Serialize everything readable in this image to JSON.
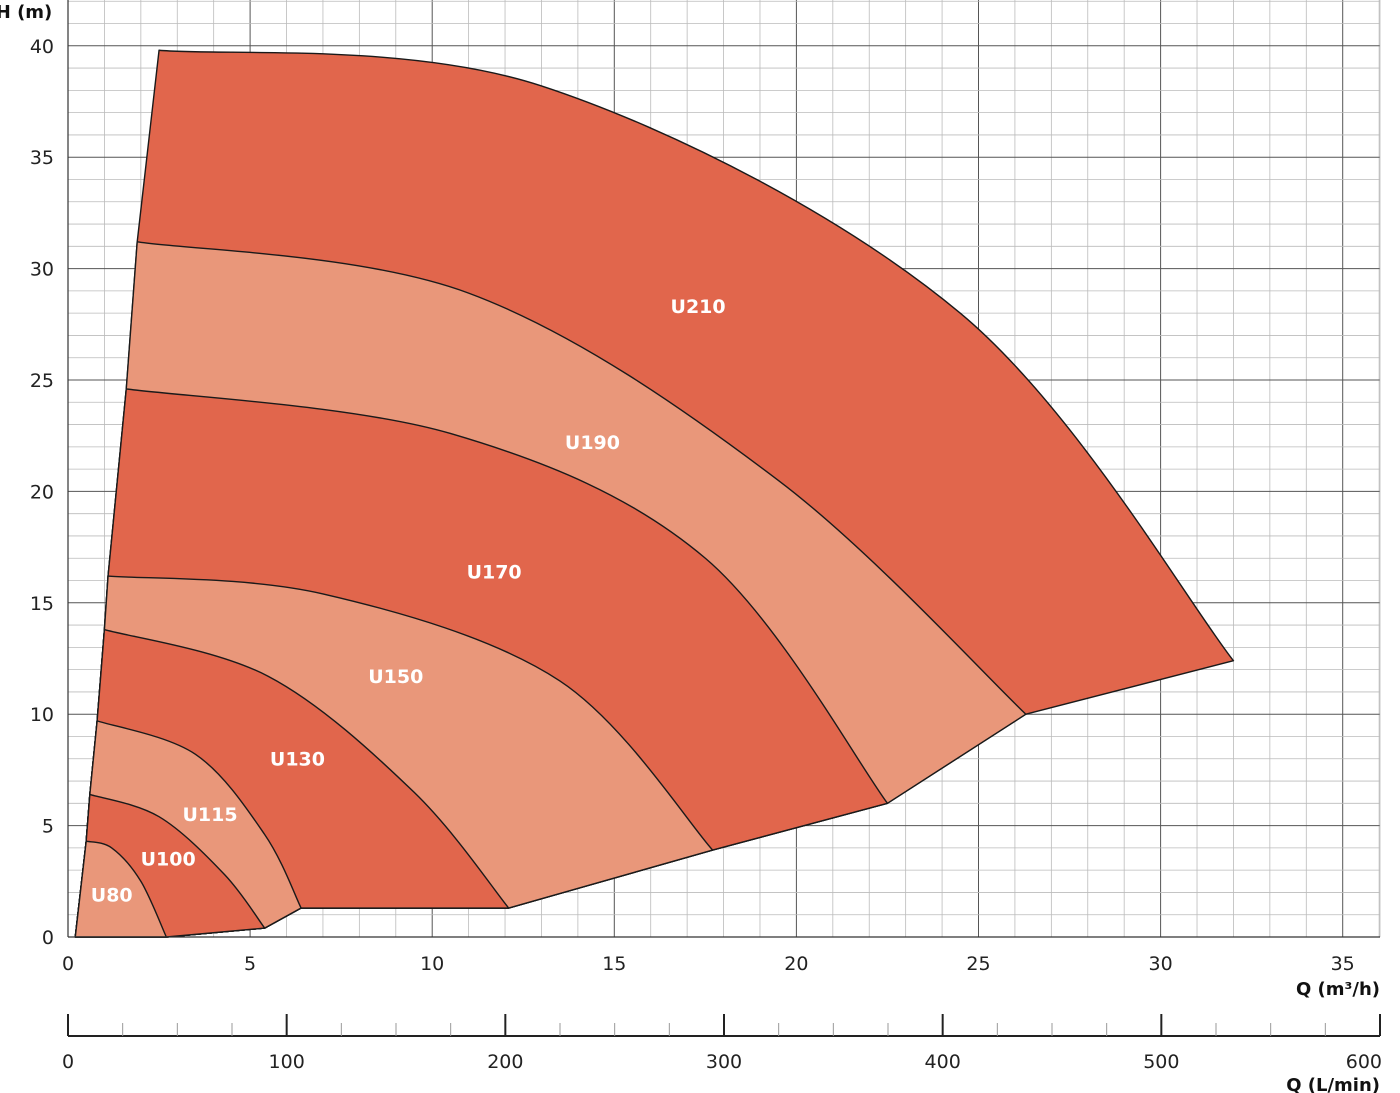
{
  "chart_data": {
    "type": "area",
    "title": "",
    "ylabel": "H (m)",
    "xlabel": "Q (m³/h)",
    "xlabel_secondary": "Q (L/min)",
    "xlim": [
      0,
      36
    ],
    "ylim": [
      0,
      42
    ],
    "xlim_secondary": [
      0,
      600
    ],
    "x_ticks": [
      "0",
      "5",
      "10",
      "15",
      "20",
      "25",
      "30",
      "35"
    ],
    "x_tick_values": [
      0,
      5,
      10,
      15,
      20,
      25,
      30,
      35
    ],
    "y_ticks": [
      "0",
      "5",
      "10",
      "15",
      "20",
      "25",
      "30",
      "35",
      "40"
    ],
    "y_tick_values": [
      0,
      5,
      10,
      15,
      20,
      25,
      30,
      35,
      40
    ],
    "x_secondary_ticks": [
      "0",
      "100",
      "200",
      "300",
      "400",
      "500",
      "600"
    ],
    "x_secondary_tick_values": [
      0,
      100,
      200,
      300,
      400,
      500,
      600
    ],
    "grid": true,
    "colors": {
      "dark": "#e1664c",
      "light": "#e9977a",
      "stroke": "#1a1a1a",
      "grid_major": "#555555",
      "grid_minor": "#bbbbbb"
    },
    "series": [
      {
        "name": "U80",
        "fill": "light",
        "curve": [
          [
            0.5,
            4.3
          ],
          [
            1.2,
            4.0
          ],
          [
            2.0,
            2.5
          ],
          [
            2.7,
            0
          ]
        ],
        "label_pos": [
          1.2,
          1.6
        ]
      },
      {
        "name": "U100",
        "fill": "dark",
        "curve": [
          [
            0.6,
            6.4
          ],
          [
            2.5,
            5.4
          ],
          [
            4.3,
            2.8
          ],
          [
            5.4,
            0.4
          ]
        ],
        "label_pos": [
          2.75,
          3.2
        ]
      },
      {
        "name": "U115",
        "fill": "light",
        "curve": [
          [
            0.8,
            9.7
          ],
          [
            3.5,
            8.2
          ],
          [
            5.4,
            4.6
          ],
          [
            6.4,
            1.3
          ]
        ],
        "label_pos": [
          3.9,
          5.2
        ]
      },
      {
        "name": "U130",
        "fill": "dark",
        "curve": [
          [
            1.0,
            13.8
          ],
          [
            5.5,
            11.7
          ],
          [
            9.5,
            6.5
          ],
          [
            12.1,
            1.3
          ]
        ],
        "label_pos": [
          6.3,
          7.7
        ]
      },
      {
        "name": "U150",
        "fill": "light",
        "curve": [
          [
            1.1,
            16.2
          ],
          [
            7.0,
            15.4
          ],
          [
            13.5,
            11.5
          ],
          [
            17.7,
            3.9
          ]
        ],
        "label_pos": [
          9.0,
          11.4
        ]
      },
      {
        "name": "U170",
        "fill": "dark",
        "curve": [
          [
            1.6,
            24.6
          ],
          [
            10.5,
            22.6
          ],
          [
            17.5,
            17.0
          ],
          [
            22.5,
            6.0
          ]
        ],
        "label_pos": [
          11.7,
          16.1
        ]
      },
      {
        "name": "U190",
        "fill": "light",
        "curve": [
          [
            1.9,
            31.2
          ],
          [
            11.0,
            28.9
          ],
          [
            19.5,
            20.5
          ],
          [
            26.3,
            10.0
          ]
        ],
        "label_pos": [
          14.4,
          21.9
        ]
      },
      {
        "name": "U210",
        "fill": "dark",
        "curve": [
          [
            2.5,
            39.8
          ],
          [
            13.0,
            38.2
          ],
          [
            24.5,
            28.0
          ],
          [
            32.0,
            12.4
          ]
        ],
        "label_pos": [
          17.3,
          28.0
        ]
      }
    ],
    "bottom_boundary": [
      [
        2.7,
        0
      ],
      [
        5.4,
        0.4
      ],
      [
        6.4,
        1.3
      ],
      [
        12.1,
        1.3
      ],
      [
        17.7,
        3.9
      ],
      [
        22.5,
        6.0
      ],
      [
        26.3,
        10.0
      ],
      [
        32.0,
        12.4
      ]
    ],
    "left_boundary": [
      [
        0.2,
        0
      ],
      [
        0.5,
        4.3
      ],
      [
        0.6,
        6.4
      ],
      [
        0.8,
        9.7
      ],
      [
        1.0,
        13.8
      ],
      [
        1.1,
        16.2
      ],
      [
        1.6,
        24.6
      ],
      [
        1.9,
        31.2
      ],
      [
        2.5,
        39.8
      ]
    ]
  }
}
